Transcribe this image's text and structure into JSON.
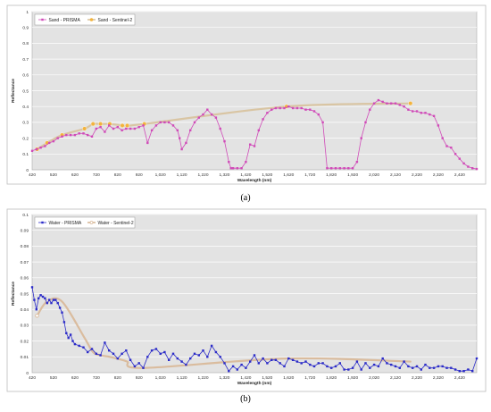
{
  "chart_data": [
    {
      "type": "line",
      "panel_label": "(a)",
      "xlabel": "Wavelength (nm)",
      "ylabel": "Reflectance",
      "xlim": [
        420,
        2500
      ],
      "ylim": [
        0,
        1
      ],
      "grid": true,
      "legend_position": "top-left",
      "xticks": [
        "420",
        "520",
        "620",
        "720",
        "820",
        "920",
        "1,020",
        "1,120",
        "1,220",
        "1,320",
        "1,420",
        "1,520",
        "1,620",
        "1,720",
        "1,820",
        "1,920",
        "2,020",
        "2,120",
        "2,220",
        "2,320",
        "2,420"
      ],
      "yticks": [
        "0",
        "0.1",
        "0.2",
        "0.3",
        "0.4",
        "0.5",
        "0.6",
        "0.7",
        "0.8",
        "0.9",
        "1"
      ],
      "series": [
        {
          "name": "Sand - PRISMA",
          "color": "#d04ab8",
          "x": [
            420,
            440,
            460,
            480,
            500,
            520,
            540,
            560,
            580,
            600,
            620,
            640,
            660,
            680,
            700,
            720,
            740,
            760,
            780,
            800,
            820,
            840,
            860,
            880,
            900,
            920,
            940,
            960,
            980,
            1000,
            1020,
            1040,
            1060,
            1080,
            1100,
            1110,
            1120,
            1140,
            1160,
            1180,
            1200,
            1220,
            1240,
            1260,
            1280,
            1300,
            1320,
            1340,
            1350,
            1360,
            1380,
            1400,
            1420,
            1440,
            1460,
            1480,
            1500,
            1520,
            1540,
            1560,
            1580,
            1600,
            1620,
            1640,
            1660,
            1680,
            1700,
            1720,
            1740,
            1760,
            1780,
            1800,
            1820,
            1840,
            1860,
            1880,
            1900,
            1920,
            1940,
            1960,
            1980,
            2000,
            2020,
            2040,
            2060,
            2080,
            2100,
            2120,
            2140,
            2160,
            2180,
            2200,
            2220,
            2240,
            2260,
            2280,
            2300,
            2320,
            2340,
            2360,
            2380,
            2400,
            2420,
            2440,
            2460,
            2480,
            2500
          ],
          "y": [
            0.12,
            0.13,
            0.14,
            0.15,
            0.17,
            0.18,
            0.2,
            0.21,
            0.22,
            0.22,
            0.22,
            0.23,
            0.23,
            0.22,
            0.21,
            0.26,
            0.27,
            0.24,
            0.28,
            0.26,
            0.27,
            0.25,
            0.26,
            0.26,
            0.26,
            0.27,
            0.28,
            0.17,
            0.25,
            0.28,
            0.3,
            0.3,
            0.3,
            0.28,
            0.25,
            0.2,
            0.13,
            0.17,
            0.25,
            0.3,
            0.33,
            0.35,
            0.38,
            0.35,
            0.33,
            0.26,
            0.18,
            0.05,
            0.01,
            0.01,
            0.01,
            0.01,
            0.05,
            0.16,
            0.15,
            0.25,
            0.32,
            0.36,
            0.38,
            0.39,
            0.39,
            0.39,
            0.4,
            0.39,
            0.39,
            0.39,
            0.38,
            0.38,
            0.37,
            0.35,
            0.3,
            0.01,
            0.01,
            0.01,
            0.01,
            0.01,
            0.01,
            0.01,
            0.05,
            0.2,
            0.3,
            0.38,
            0.42,
            0.44,
            0.43,
            0.42,
            0.42,
            0.42,
            0.41,
            0.4,
            0.38,
            0.37,
            0.37,
            0.36,
            0.36,
            0.35,
            0.34,
            0.28,
            0.2,
            0.15,
            0.14,
            0.1,
            0.07,
            0.04,
            0.02,
            0.01,
            0.005
          ]
        },
        {
          "name": "Sand - Sentinel-2",
          "color": "#f2b33d",
          "x": [
            443,
            490,
            560,
            665,
            705,
            740,
            783,
            842,
            865,
            945,
            1610,
            2190
          ],
          "y": [
            0.13,
            0.17,
            0.22,
            0.26,
            0.29,
            0.29,
            0.29,
            0.28,
            0.28,
            0.29,
            0.4,
            0.42
          ]
        }
      ]
    },
    {
      "type": "line",
      "panel_label": "(b)",
      "xlabel": "Wavelength (nm)",
      "ylabel": "Reflectance",
      "xlim": [
        420,
        2500
      ],
      "ylim": [
        0,
        0.1
      ],
      "grid": true,
      "legend_position": "top-left",
      "xticks": [
        "420",
        "520",
        "620",
        "720",
        "820",
        "920",
        "1,020",
        "1,120",
        "1,220",
        "1,320",
        "1,420",
        "1,520",
        "1,620",
        "1,720",
        "1,820",
        "1,920",
        "2,020",
        "2,120",
        "2,220",
        "2,320",
        "2,420"
      ],
      "yticks": [
        "0",
        "0.01",
        "0.02",
        "0.03",
        "0.04",
        "0.05",
        "0.06",
        "0.07",
        "0.08",
        "0.09",
        "0.1"
      ],
      "series": [
        {
          "name": "Water - PRISMA",
          "color": "#2b2bc8",
          "x": [
            420,
            430,
            440,
            450,
            460,
            470,
            480,
            490,
            500,
            510,
            520,
            530,
            540,
            550,
            560,
            570,
            580,
            590,
            600,
            610,
            620,
            640,
            660,
            680,
            700,
            720,
            740,
            760,
            780,
            800,
            820,
            840,
            860,
            880,
            900,
            920,
            940,
            960,
            980,
            1000,
            1020,
            1040,
            1060,
            1080,
            1100,
            1120,
            1140,
            1160,
            1180,
            1200,
            1220,
            1240,
            1260,
            1280,
            1300,
            1320,
            1340,
            1360,
            1380,
            1400,
            1420,
            1440,
            1460,
            1480,
            1500,
            1520,
            1540,
            1560,
            1580,
            1600,
            1620,
            1640,
            1660,
            1680,
            1700,
            1720,
            1740,
            1760,
            1780,
            1800,
            1820,
            1840,
            1860,
            1880,
            1900,
            1920,
            1940,
            1960,
            1980,
            2000,
            2020,
            2040,
            2060,
            2080,
            2100,
            2120,
            2140,
            2160,
            2180,
            2200,
            2220,
            2240,
            2260,
            2280,
            2300,
            2320,
            2340,
            2360,
            2380,
            2400,
            2420,
            2440,
            2460,
            2480,
            2500
          ],
          "y": [
            0.054,
            0.046,
            0.04,
            0.047,
            0.049,
            0.048,
            0.047,
            0.044,
            0.046,
            0.044,
            0.046,
            0.046,
            0.044,
            0.041,
            0.038,
            0.032,
            0.025,
            0.022,
            0.024,
            0.02,
            0.018,
            0.017,
            0.016,
            0.013,
            0.015,
            0.012,
            0.011,
            0.019,
            0.014,
            0.012,
            0.009,
            0.012,
            0.014,
            0.008,
            0.004,
            0.006,
            0.003,
            0.01,
            0.014,
            0.015,
            0.012,
            0.013,
            0.008,
            0.012,
            0.009,
            0.007,
            0.005,
            0.009,
            0.012,
            0.011,
            0.014,
            0.01,
            0.017,
            0.013,
            0.01,
            0.006,
            0.001,
            0.004,
            0.002,
            0.005,
            0.003,
            0.007,
            0.011,
            0.006,
            0.009,
            0.006,
            0.008,
            0.008,
            0.006,
            0.004,
            0.009,
            0.008,
            0.007,
            0.006,
            0.007,
            0.005,
            0.004,
            0.006,
            0.006,
            0.004,
            0.003,
            0.004,
            0.006,
            0.002,
            0.002,
            0.003,
            0.007,
            0.002,
            0.006,
            0.003,
            0.005,
            0.004,
            0.009,
            0.006,
            0.005,
            0.004,
            0.003,
            0.007,
            0.004,
            0.003,
            0.004,
            0.002,
            0.005,
            0.003,
            0.003,
            0.004,
            0.004,
            0.003,
            0.003,
            0.002,
            0.001,
            0.001,
            0.002,
            0.001,
            0.009
          ]
        },
        {
          "name": "Water - Sentinel-2",
          "color": "#d9b99a",
          "x": [
            443,
            490,
            560,
            665,
            705,
            740,
            783,
            842,
            865,
            945,
            1610,
            2190
          ],
          "y": [
            0.036,
            0.045,
            0.045,
            0.022,
            0.013,
            0.011,
            0.01,
            0.008,
            0.007,
            0.003,
            0.009,
            0.007
          ]
        }
      ]
    }
  ]
}
